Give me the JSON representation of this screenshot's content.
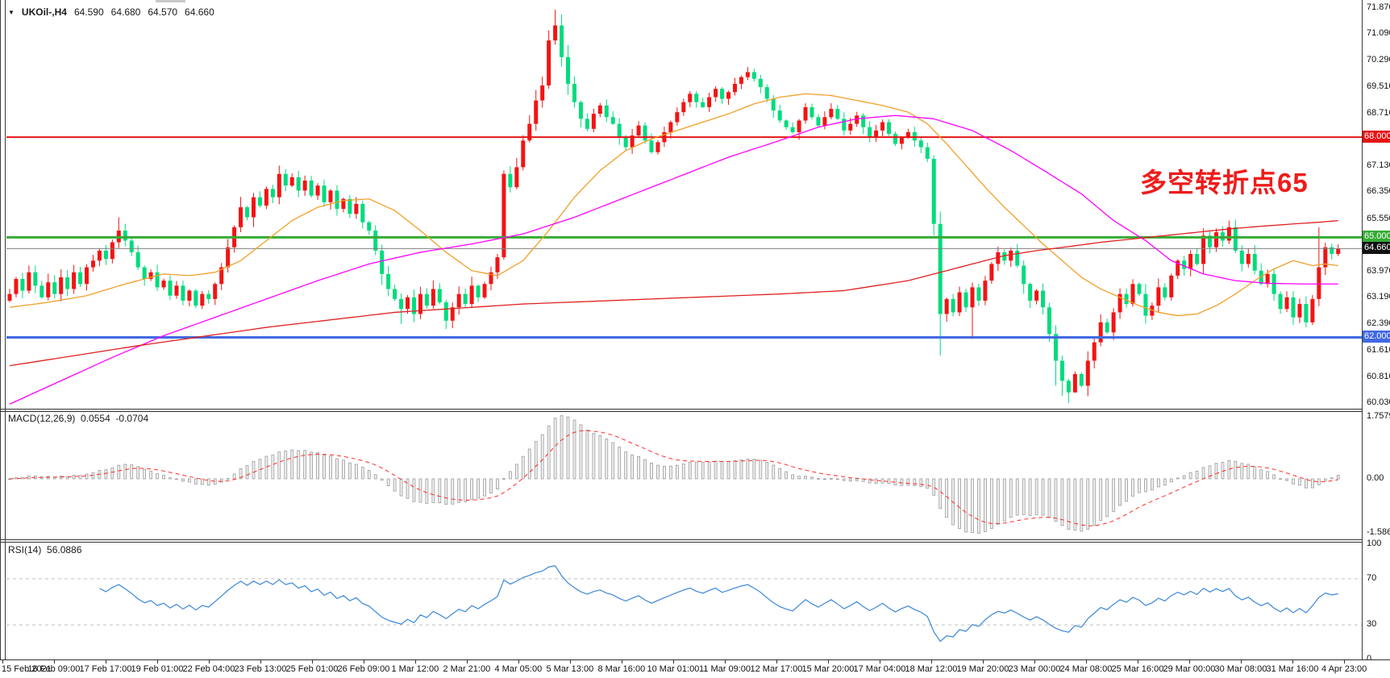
{
  "header": {
    "symbol": "UKOil-,H4",
    "open": "64.590",
    "high": "64.680",
    "low": "64.570",
    "close": "64.660"
  },
  "annotation": {
    "text": "多空转折点65",
    "color": "#ee1c1c"
  },
  "indicators": {
    "macd": {
      "label": "MACD(12,26,9)",
      "value_main": "0.0554",
      "value_signal": "-0.0704",
      "axis_labels": [
        "1.7579",
        "0.00",
        "-1.5867"
      ]
    },
    "rsi": {
      "label": "RSI(14)",
      "value": "56.0886",
      "axis_labels": [
        "100",
        "70",
        "30",
        "0"
      ],
      "levels": [
        70,
        30
      ]
    }
  },
  "chart_data": {
    "type": "candlestick",
    "symbol": "UKOil-",
    "timeframe": "H4",
    "title": "UKOil-,H4 64.590 64.680 64.570 64.660",
    "grid": false,
    "legend_position": "none",
    "ylim": [
      59.885,
      72.015
    ],
    "bars": 208,
    "up_color_convention": "red-up-green-down",
    "open_first": 63.1,
    "closes": [
      63.3,
      63.75,
      63.4,
      63.95,
      63.55,
      63.2,
      63.65,
      63.3,
      63.8,
      63.45,
      63.95,
      63.6,
      64.1,
      64.3,
      64.6,
      64.35,
      64.85,
      65.2,
      64.9,
      64.55,
      64.1,
      63.75,
      63.95,
      63.5,
      63.7,
      63.25,
      63.55,
      63.1,
      63.4,
      62.95,
      63.3,
      63.15,
      63.6,
      64.1,
      64.7,
      65.3,
      65.9,
      65.6,
      66.2,
      65.95,
      66.45,
      66.2,
      66.9,
      66.55,
      66.8,
      66.4,
      66.7,
      66.25,
      66.55,
      66.05,
      66.4,
      65.85,
      66.15,
      65.7,
      66.0,
      65.45,
      65.2,
      64.6,
      63.9,
      63.45,
      63.15,
      62.85,
      63.2,
      62.7,
      63.3,
      62.95,
      63.45,
      63.05,
      62.5,
      62.9,
      63.3,
      63.0,
      63.55,
      63.2,
      63.6,
      63.95,
      64.4,
      66.9,
      66.5,
      67.1,
      67.9,
      68.4,
      69.1,
      69.55,
      70.9,
      71.35,
      70.4,
      69.6,
      69.05,
      68.55,
      68.25,
      68.7,
      68.95,
      68.6,
      68.4,
      68.0,
      67.7,
      68.05,
      68.35,
      67.9,
      67.55,
      67.85,
      68.15,
      68.45,
      68.75,
      69.05,
      69.3,
      69.05,
      68.9,
      69.2,
      69.45,
      69.15,
      69.35,
      69.6,
      69.8,
      69.95,
      69.75,
      69.5,
      69.15,
      68.8,
      68.5,
      68.3,
      68.15,
      68.5,
      68.9,
      68.6,
      68.35,
      68.6,
      68.85,
      68.55,
      68.2,
      68.4,
      68.65,
      68.3,
      68.0,
      68.2,
      68.45,
      68.1,
      67.8,
      68.0,
      68.15,
      67.9,
      67.7,
      67.35,
      65.4,
      62.7,
      63.15,
      62.75,
      63.35,
      62.9,
      63.5,
      63.1,
      63.7,
      64.2,
      64.55,
      64.3,
      64.6,
      64.15,
      63.6,
      63.1,
      63.4,
      62.9,
      62.1,
      61.3,
      60.7,
      60.35,
      60.9,
      60.55,
      61.3,
      61.85,
      62.45,
      62.15,
      62.75,
      63.3,
      63.0,
      63.6,
      63.3,
      62.65,
      62.95,
      63.5,
      63.2,
      63.85,
      64.3,
      64.05,
      64.5,
      64.2,
      65.05,
      64.7,
      65.15,
      64.9,
      65.3,
      64.6,
      64.2,
      64.5,
      64.0,
      63.6,
      63.9,
      63.3,
      62.85,
      63.2,
      62.6,
      63.0,
      62.45,
      63.15,
      64.1,
      64.7,
      64.5,
      64.66
    ],
    "high_overrides": {
      "17": 65.6,
      "42": 67.15,
      "77": 67.0,
      "84": 71.2,
      "85": 71.82,
      "115": 70.1,
      "190": 65.5,
      "204": 65.3
    },
    "low_overrides": {
      "61": 62.4,
      "68": 62.25,
      "145": 61.45,
      "150": 61.95,
      "163": 60.55,
      "164": 60.25,
      "165": 60.03,
      "166": 60.35,
      "202": 62.3
    },
    "moving_averages": {
      "fast": {
        "color": "#f0a028",
        "anchors": [
          [
            0,
            62.9
          ],
          [
            6,
            63.05
          ],
          [
            12,
            63.25
          ],
          [
            18,
            63.6
          ],
          [
            24,
            63.9
          ],
          [
            28,
            63.85
          ],
          [
            32,
            63.95
          ],
          [
            36,
            64.3
          ],
          [
            40,
            64.9
          ],
          [
            44,
            65.5
          ],
          [
            48,
            65.9
          ],
          [
            52,
            66.1
          ],
          [
            56,
            66.15
          ],
          [
            60,
            65.8
          ],
          [
            64,
            65.2
          ],
          [
            68,
            64.55
          ],
          [
            72,
            64.0
          ],
          [
            76,
            63.85
          ],
          [
            80,
            64.3
          ],
          [
            84,
            65.2
          ],
          [
            88,
            66.2
          ],
          [
            92,
            67.0
          ],
          [
            96,
            67.6
          ],
          [
            100,
            67.95
          ],
          [
            104,
            68.2
          ],
          [
            108,
            68.45
          ],
          [
            112,
            68.7
          ],
          [
            116,
            69.0
          ],
          [
            120,
            69.2
          ],
          [
            124,
            69.3
          ],
          [
            128,
            69.25
          ],
          [
            132,
            69.1
          ],
          [
            136,
            68.95
          ],
          [
            140,
            68.75
          ],
          [
            143,
            68.4
          ],
          [
            146,
            67.8
          ],
          [
            149,
            67.15
          ],
          [
            152,
            66.5
          ],
          [
            155,
            65.9
          ],
          [
            158,
            65.35
          ],
          [
            161,
            64.8
          ],
          [
            164,
            64.3
          ],
          [
            167,
            63.8
          ],
          [
            170,
            63.45
          ],
          [
            173,
            63.2
          ],
          [
            176,
            62.95
          ],
          [
            179,
            62.75
          ],
          [
            182,
            62.65
          ],
          [
            185,
            62.7
          ],
          [
            188,
            62.95
          ],
          [
            191,
            63.3
          ],
          [
            194,
            63.7
          ],
          [
            197,
            64.05
          ],
          [
            200,
            64.3
          ],
          [
            203,
            64.15
          ],
          [
            205,
            64.2
          ],
          [
            207,
            64.15
          ]
        ]
      },
      "medium": {
        "color": "#ff00ff",
        "anchors": [
          [
            0,
            60.0
          ],
          [
            8,
            60.7
          ],
          [
            16,
            61.4
          ],
          [
            24,
            62.05
          ],
          [
            32,
            62.6
          ],
          [
            40,
            63.15
          ],
          [
            48,
            63.7
          ],
          [
            56,
            64.2
          ],
          [
            64,
            64.55
          ],
          [
            72,
            64.8
          ],
          [
            80,
            65.1
          ],
          [
            88,
            65.6
          ],
          [
            96,
            66.2
          ],
          [
            104,
            66.8
          ],
          [
            112,
            67.4
          ],
          [
            120,
            67.9
          ],
          [
            126,
            68.3
          ],
          [
            132,
            68.55
          ],
          [
            138,
            68.65
          ],
          [
            144,
            68.55
          ],
          [
            150,
            68.2
          ],
          [
            156,
            67.6
          ],
          [
            162,
            66.9
          ],
          [
            167,
            66.3
          ],
          [
            172,
            65.5
          ],
          [
            177,
            64.9
          ],
          [
            181,
            64.3
          ],
          [
            186,
            63.9
          ],
          [
            191,
            63.7
          ],
          [
            196,
            63.62
          ],
          [
            202,
            63.6
          ],
          [
            207,
            63.6
          ]
        ]
      },
      "slow": {
        "color": "#e02020",
        "anchors": [
          [
            0,
            61.15
          ],
          [
            20,
            61.75
          ],
          [
            40,
            62.3
          ],
          [
            60,
            62.75
          ],
          [
            80,
            63.0
          ],
          [
            100,
            63.15
          ],
          [
            120,
            63.3
          ],
          [
            130,
            63.4
          ],
          [
            140,
            63.7
          ],
          [
            145,
            63.95
          ],
          [
            150,
            64.2
          ],
          [
            155,
            64.45
          ],
          [
            160,
            64.6
          ],
          [
            165,
            64.72
          ],
          [
            170,
            64.85
          ],
          [
            175,
            64.95
          ],
          [
            180,
            65.05
          ],
          [
            185,
            65.15
          ],
          [
            190,
            65.25
          ],
          [
            195,
            65.33
          ],
          [
            200,
            65.4
          ],
          [
            204,
            65.45
          ],
          [
            207,
            65.5
          ]
        ]
      }
    },
    "hlines": [
      {
        "price": 68.0,
        "label": "68.000",
        "color": "#e41414",
        "width": 2
      },
      {
        "price": 65.0,
        "label": "65.000",
        "color": "#35ab35",
        "width": 3
      },
      {
        "price": 62.0,
        "label": "62.000",
        "color": "#4169e1",
        "width": 3
      }
    ],
    "current_price": {
      "price": 64.66,
      "label": "64.660",
      "line_color": "#808080",
      "badge_color": "#111111"
    },
    "y_ticks": [
      71.87,
      71.09,
      70.29,
      69.51,
      68.71,
      67.13,
      66.35,
      65.55,
      63.97,
      63.19,
      62.39,
      61.61,
      60.81,
      60.03
    ],
    "x_labels": [
      "15 Feb 2021",
      "16 Feb 09:00",
      "17 Feb 17:00",
      "19 Feb 01:00",
      "22 Feb 04:00",
      "23 Feb 13:00",
      "25 Feb 01:00",
      "26 Feb 09:00",
      "1 Mar 12:00",
      "2 Mar 21:00",
      "4 Mar 05:00",
      "5 Mar 13:00",
      "8 Mar 16:00",
      "10 Mar 01:00",
      "11 Mar 09:00",
      "12 Mar 17:00",
      "15 Mar 20:00",
      "17 Mar 04:00",
      "18 Mar 12:00",
      "19 Mar 20:00",
      "23 Mar 00:00",
      "24 Mar 08:00",
      "25 Mar 16:00",
      "29 Mar 00:00",
      "30 Mar 08:00",
      "31 Mar 16:00",
      "4 Apr 23:00"
    ],
    "macd_ylim": [
      -1.5867,
      1.7579
    ],
    "rsi_ylim": [
      0,
      100
    ],
    "colors": {
      "up": "#f21414",
      "down": "#00dc7d",
      "macd_hist_stroke": "#9c9c9c",
      "macd_hist_fill": "#efefef",
      "macd_signal": "#ff2a2a",
      "rsi_line": "#3a87d9"
    }
  }
}
